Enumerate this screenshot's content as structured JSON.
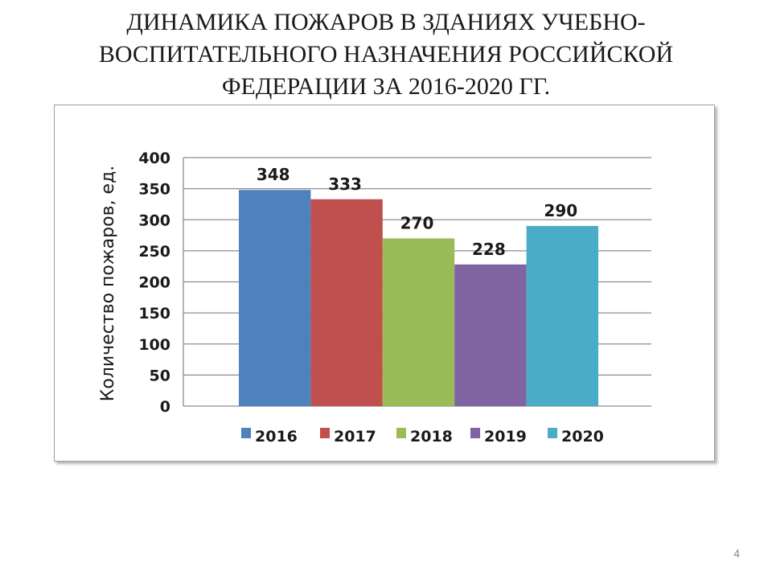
{
  "slide": {
    "title_lines": [
      "ДИНАМИКА ПОЖАРОВ В ЗДАНИЯХ УЧЕБНО-",
      "ВОСПИТАТЕЛЬНОГО НАЗНАЧЕНИЯ РОССИЙСКОЙ",
      "ФЕДЕРАЦИИ ЗА 2016-2020 ГГ."
    ],
    "page_number": "4"
  },
  "chart_data": {
    "type": "bar",
    "ylabel": "Количество пожаров, ед.",
    "ylim": [
      0,
      400
    ],
    "yticks": [
      0,
      50,
      100,
      150,
      200,
      250,
      300,
      350,
      400
    ],
    "grid": true,
    "legend_position": "bottom",
    "show_data_labels": true,
    "series": [
      {
        "name": "2016",
        "values": [
          348
        ],
        "color": "#4f81bd"
      },
      {
        "name": "2017",
        "values": [
          333
        ],
        "color": "#c0504d"
      },
      {
        "name": "2018",
        "values": [
          270
        ],
        "color": "#9bbb59"
      },
      {
        "name": "2019",
        "values": [
          228
        ],
        "color": "#8064a2"
      },
      {
        "name": "2020",
        "values": [
          290
        ],
        "color": "#4bacc6"
      }
    ]
  }
}
